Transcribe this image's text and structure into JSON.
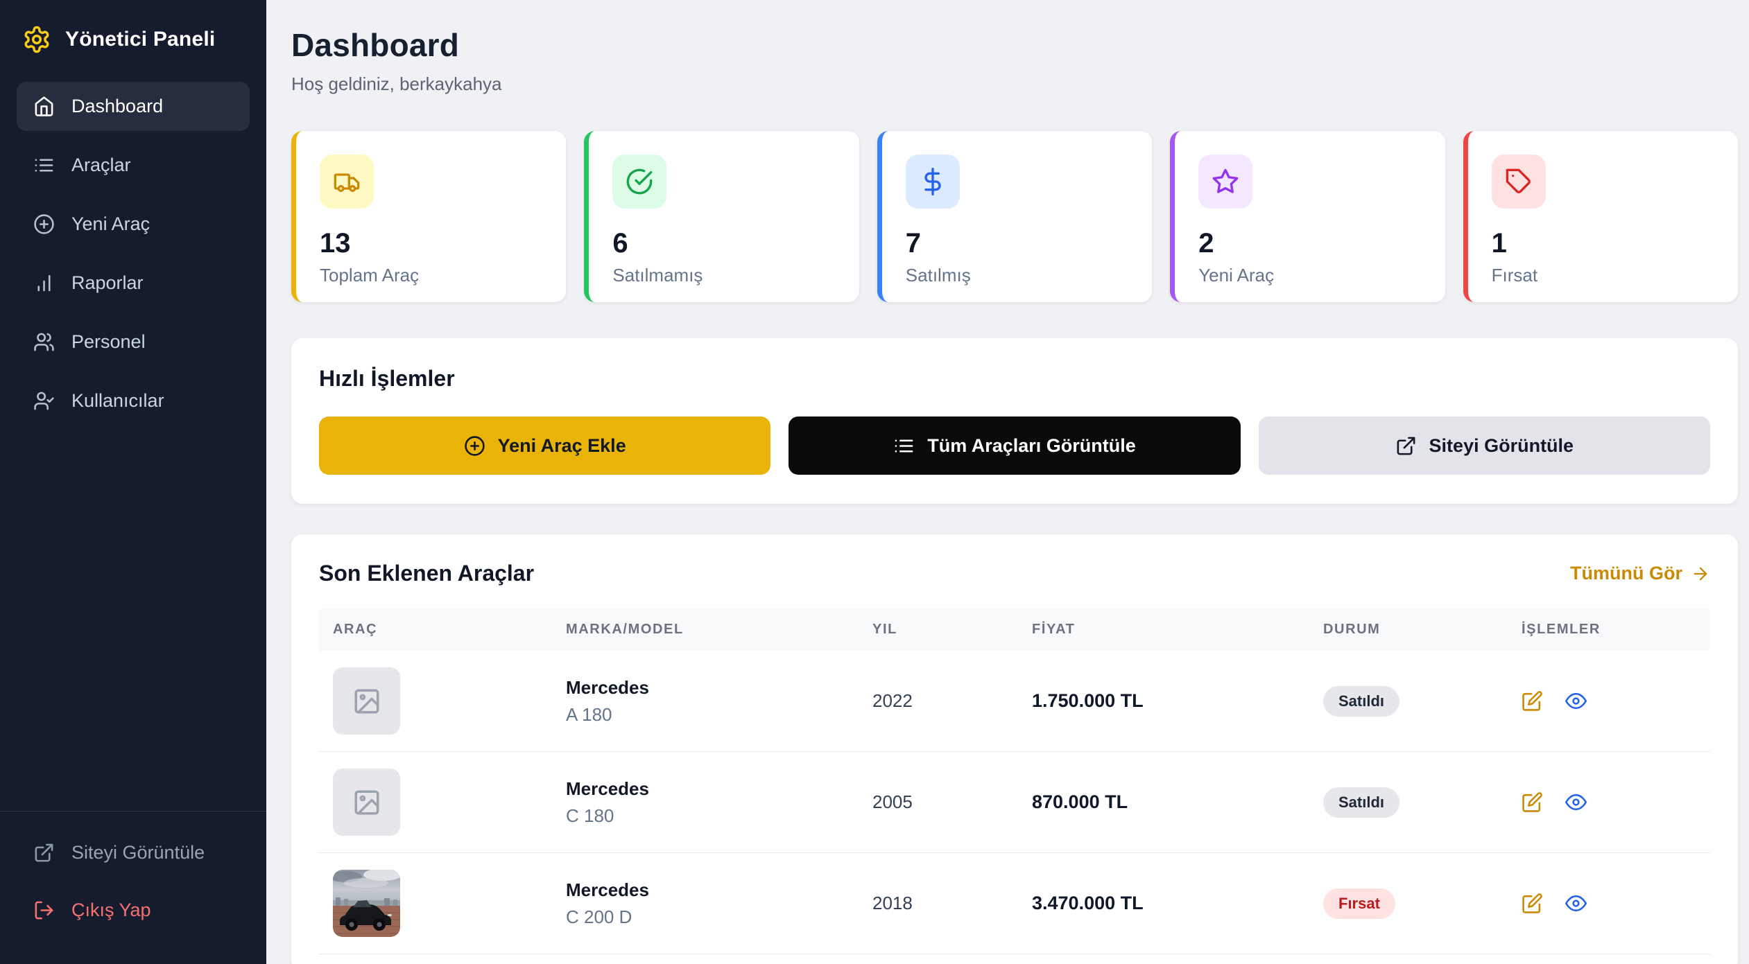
{
  "sidebar": {
    "title": "Yönetici Paneli",
    "items": [
      {
        "label": "Dashboard",
        "icon": "home",
        "active": true
      },
      {
        "label": "Araçlar",
        "icon": "list",
        "active": false
      },
      {
        "label": "Yeni Araç",
        "icon": "plus-circle",
        "active": false
      },
      {
        "label": "Raporlar",
        "icon": "bar-chart",
        "active": false
      },
      {
        "label": "Personel",
        "icon": "users",
        "active": false
      },
      {
        "label": "Kullanıcılar",
        "icon": "user-check",
        "active": false
      }
    ],
    "footer": [
      {
        "label": "Siteyi Görüntüle",
        "icon": "external-link",
        "type": "site"
      },
      {
        "label": "Çıkış Yap",
        "icon": "log-out",
        "type": "logout",
        "color": "#f87171"
      }
    ]
  },
  "header": {
    "title": "Dashboard",
    "welcome": "Hoş geldiniz, berkaykahya"
  },
  "stats": [
    {
      "value": "13",
      "label": "Toplam Araç",
      "icon": "truck",
      "accent": "#eab308",
      "icon_bg": "#fef9c3",
      "icon_color": "#ca8a04"
    },
    {
      "value": "6",
      "label": "Satılmamış",
      "icon": "check-circle",
      "accent": "#22c55e",
      "icon_bg": "#dcfce7",
      "icon_color": "#16a34a"
    },
    {
      "value": "7",
      "label": "Satılmış",
      "icon": "dollar-sign",
      "accent": "#3b82f6",
      "icon_bg": "#dbeafe",
      "icon_color": "#2563eb"
    },
    {
      "value": "2",
      "label": "Yeni Araç",
      "icon": "star",
      "accent": "#a855f7",
      "icon_bg": "#f3e8ff",
      "icon_color": "#9333ea"
    },
    {
      "value": "1",
      "label": "Fırsat",
      "icon": "tag",
      "accent": "#ef4444",
      "icon_bg": "#fee2e2",
      "icon_color": "#dc2626"
    }
  ],
  "quick_actions": {
    "title": "Hızlı İşlemler",
    "buttons": [
      {
        "label": "Yeni Araç Ekle",
        "icon": "plus-circle",
        "bg": "#eab308",
        "color": "#111827"
      },
      {
        "label": "Tüm Araçları Görüntüle",
        "icon": "list",
        "bg": "#0a0a0a",
        "color": "#ffffff"
      },
      {
        "label": "Siteyi Görüntüle",
        "icon": "external-link",
        "bg": "#e2e4e9",
        "color": "#111827"
      }
    ]
  },
  "recent": {
    "title": "Son Eklenen Araçlar",
    "view_all": "Tümünü Gör",
    "columns": [
      "Araç",
      "Marka/Model",
      "Yıl",
      "Fiyat",
      "Durum",
      "İşlemler"
    ],
    "rows": [
      {
        "brand": "Mercedes",
        "model": "A 180",
        "year": "2022",
        "price": "1.750.000 TL",
        "status": "Satıldı",
        "status_bg": "#e5e7eb",
        "status_color": "#1f2937",
        "photo": "placeholder"
      },
      {
        "brand": "Mercedes",
        "model": "C 180",
        "year": "2005",
        "price": "870.000 TL",
        "status": "Satıldı",
        "status_bg": "#e5e7eb",
        "status_color": "#1f2937",
        "photo": "placeholder"
      },
      {
        "brand": "Mercedes",
        "model": "C 200 D",
        "year": "2018",
        "price": "3.470.000 TL",
        "status": "Fırsat",
        "status_bg": "#fee2e2",
        "status_color": "#b91c1c",
        "photo": "car"
      }
    ]
  }
}
